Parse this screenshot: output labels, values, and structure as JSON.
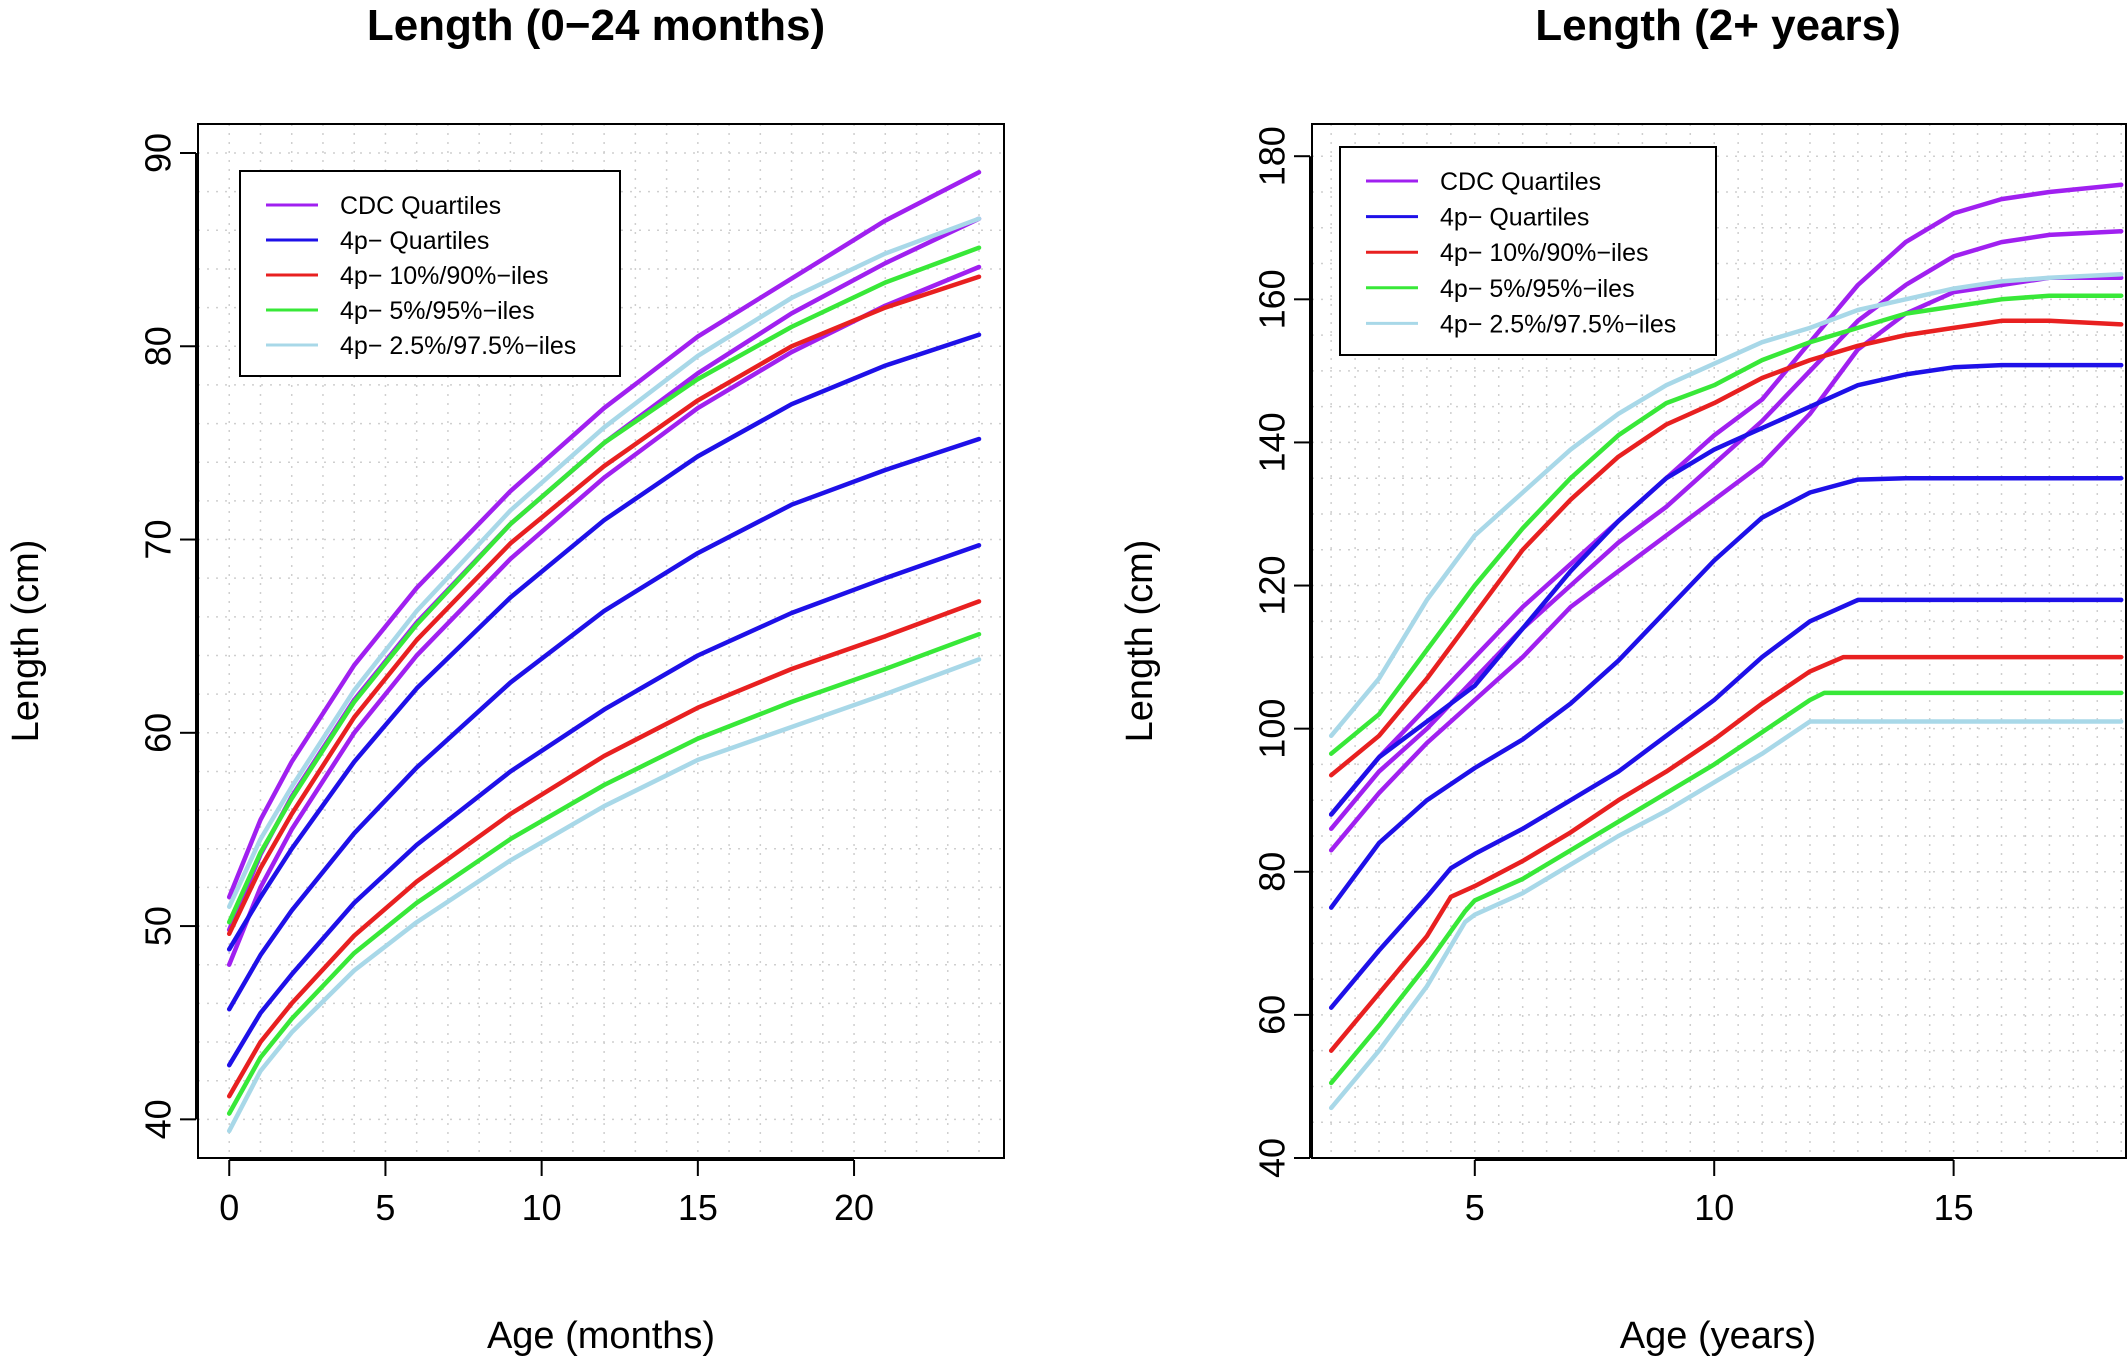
{
  "chart_data": [
    {
      "type": "line",
      "title": "Length (0−24 months)",
      "xlabel": "Age (months)",
      "ylabel": "Length (cm)",
      "xlim": [
        -1,
        24.8
      ],
      "ylim": [
        38,
        91.5
      ],
      "xticks": [
        0,
        5,
        10,
        15,
        20
      ],
      "xtick_labels": [
        "0",
        "5",
        "10",
        "15",
        "20"
      ],
      "yticks": [
        40,
        50,
        60,
        70,
        80,
        90
      ],
      "ytick_labels": [
        "40",
        "50",
        "60",
        "70",
        "80",
        "90"
      ],
      "grid": true,
      "legend_position": "top-left",
      "legend": [
        {
          "label": "CDC Quartiles",
          "color": "#a020f0"
        },
        {
          "label": "4p− Quartiles",
          "color": "#1e10e8"
        },
        {
          "label": "4p− 10%/90%−iles",
          "color": "#e82020"
        },
        {
          "label": "4p− 5%/95%−iles",
          "color": "#38e838"
        },
        {
          "label": "4p− 2.5%/97.5%−iles",
          "color": "#a8d8e8"
        }
      ],
      "series": [
        {
          "group": "CDC Quartiles",
          "color": "#a020f0",
          "x": [
            0,
            1,
            2,
            4,
            6,
            9,
            12,
            15,
            18,
            21,
            24
          ],
          "y": [
            51.5,
            55.5,
            58.5,
            63.5,
            67.5,
            72.5,
            76.8,
            80.5,
            83.5,
            86.5,
            89.0
          ]
        },
        {
          "group": "CDC Quartiles",
          "color": "#a020f0",
          "x": [
            0,
            1,
            2,
            4,
            6,
            9,
            12,
            15,
            18,
            21,
            24
          ],
          "y": [
            49.8,
            53.7,
            56.7,
            61.7,
            65.7,
            70.8,
            75.0,
            78.6,
            81.7,
            84.3,
            86.6
          ]
        },
        {
          "group": "CDC Quartiles",
          "color": "#a020f0",
          "x": [
            0,
            1,
            2,
            4,
            6,
            9,
            12,
            15,
            18,
            21,
            24
          ],
          "y": [
            48.0,
            52.0,
            55.0,
            60.0,
            64.0,
            69.0,
            73.2,
            76.8,
            79.7,
            82.1,
            84.1
          ]
        },
        {
          "group": "4p− Quartiles",
          "color": "#1e10e8",
          "x": [
            0,
            1,
            2,
            4,
            6,
            9,
            12,
            15,
            18,
            21,
            24
          ],
          "y": [
            48.8,
            51.5,
            54.0,
            58.5,
            62.3,
            67.0,
            71.0,
            74.3,
            77.0,
            79.0,
            80.6
          ]
        },
        {
          "group": "4p− Quartiles",
          "color": "#1e10e8",
          "x": [
            0,
            1,
            2,
            4,
            6,
            9,
            12,
            15,
            18,
            21,
            24
          ],
          "y": [
            45.7,
            48.5,
            50.8,
            54.8,
            58.2,
            62.6,
            66.3,
            69.3,
            71.8,
            73.6,
            75.2
          ]
        },
        {
          "group": "4p− Quartiles",
          "color": "#1e10e8",
          "x": [
            0,
            1,
            2,
            4,
            6,
            9,
            12,
            15,
            18,
            21,
            24
          ],
          "y": [
            42.8,
            45.5,
            47.5,
            51.2,
            54.2,
            58.0,
            61.2,
            64.0,
            66.2,
            68.0,
            69.7
          ]
        },
        {
          "group": "4p− 10%/90%−iles",
          "color": "#e82020",
          "x": [
            0,
            1,
            2,
            4,
            6,
            9,
            12,
            15,
            18,
            21,
            24
          ],
          "y": [
            49.6,
            53.0,
            55.8,
            60.8,
            64.8,
            69.8,
            73.8,
            77.2,
            80.0,
            82.0,
            83.6
          ]
        },
        {
          "group": "4p− 10%/90%−iles",
          "color": "#e82020",
          "x": [
            0,
            1,
            2,
            4,
            6,
            9,
            12,
            15,
            18,
            21,
            24
          ],
          "y": [
            41.2,
            44.0,
            46.0,
            49.5,
            52.3,
            55.8,
            58.8,
            61.3,
            63.3,
            65.0,
            66.8
          ]
        },
        {
          "group": "4p− 5%/95%−iles",
          "color": "#38e838",
          "x": [
            0,
            1,
            2,
            4,
            6,
            9,
            12,
            15,
            18,
            21,
            24
          ],
          "y": [
            50.2,
            53.8,
            56.6,
            61.6,
            65.6,
            70.8,
            75.0,
            78.3,
            81.0,
            83.3,
            85.1
          ]
        },
        {
          "group": "4p− 5%/95%−iles",
          "color": "#38e838",
          "x": [
            0,
            1,
            2,
            4,
            6,
            9,
            12,
            15,
            18,
            21,
            24
          ],
          "y": [
            40.3,
            43.2,
            45.2,
            48.6,
            51.2,
            54.5,
            57.3,
            59.7,
            61.6,
            63.3,
            65.1
          ]
        },
        {
          "group": "4p− 2.5%/97.5%−iles",
          "color": "#a8d8e8",
          "x": [
            0,
            1,
            2,
            4,
            6,
            9,
            12,
            15,
            18,
            21,
            24
          ],
          "y": [
            51.0,
            54.5,
            57.2,
            62.2,
            66.3,
            71.5,
            75.8,
            79.5,
            82.5,
            84.8,
            86.6
          ]
        },
        {
          "group": "4p− 2.5%/97.5%−iles",
          "color": "#a8d8e8",
          "x": [
            0,
            1,
            2,
            4,
            6,
            9,
            12,
            15,
            18,
            21,
            24
          ],
          "y": [
            39.4,
            42.5,
            44.5,
            47.7,
            50.2,
            53.4,
            56.2,
            58.6,
            60.3,
            62.0,
            63.8
          ]
        }
      ]
    },
    {
      "type": "line",
      "title": "Length (2+ years)",
      "xlabel": "Age (years)",
      "ylabel": "Length (cm)",
      "xlim": [
        1.6,
        18.6
      ],
      "ylim": [
        40,
        184.5
      ],
      "xticks": [
        5,
        10,
        15
      ],
      "xtick_labels": [
        "5",
        "10",
        "15"
      ],
      "yticks": [
        40,
        60,
        80,
        100,
        120,
        140,
        160,
        180
      ],
      "ytick_labels": [
        "40",
        "60",
        "80",
        "100",
        "120",
        "140",
        "160",
        "180"
      ],
      "grid": true,
      "legend_position": "top-left",
      "legend": [
        {
          "label": "CDC Quartiles",
          "color": "#a020f0"
        },
        {
          "label": "4p− Quartiles",
          "color": "#1e10e8"
        },
        {
          "label": "4p− 10%/90%−iles",
          "color": "#e82020"
        },
        {
          "label": "4p− 5%/95%−iles",
          "color": "#38e838"
        },
        {
          "label": "4p− 2.5%/97.5%−iles",
          "color": "#a8d8e8"
        }
      ],
      "series": [
        {
          "group": "CDC Quartiles",
          "color": "#a020f0",
          "x": [
            2,
            3,
            4,
            5,
            6,
            7,
            8,
            9,
            10,
            11,
            12,
            13,
            14,
            15,
            16,
            17,
            18.5
          ],
          "y": [
            88,
            96,
            103,
            110,
            117,
            123,
            129,
            135,
            141,
            146,
            154,
            162,
            168,
            172,
            174,
            175,
            176
          ]
        },
        {
          "group": "CDC Quartiles",
          "color": "#a020f0",
          "x": [
            2,
            3,
            4,
            5,
            6,
            7,
            8,
            9,
            10,
            11,
            12,
            13,
            14,
            15,
            16,
            17,
            18.5
          ],
          "y": [
            86,
            94,
            100,
            107,
            114,
            120,
            126,
            131,
            137,
            143,
            150,
            157,
            162,
            166,
            168,
            169,
            169.5
          ]
        },
        {
          "group": "CDC Quartiles",
          "color": "#a020f0",
          "x": [
            2,
            3,
            4,
            5,
            6,
            7,
            8,
            9,
            10,
            11,
            12,
            13,
            14,
            15,
            16,
            17,
            18.5
          ],
          "y": [
            83,
            91,
            98,
            104,
            110,
            117,
            122,
            127,
            132,
            137,
            144,
            153,
            158,
            161,
            162,
            163,
            163
          ]
        },
        {
          "group": "4p− Quartiles",
          "color": "#1e10e8",
          "x": [
            2,
            3,
            4,
            5,
            6,
            7,
            8,
            9,
            10,
            11,
            12,
            13,
            14,
            15,
            16,
            17,
            18.5
          ],
          "y": [
            88,
            96,
            101,
            106,
            114,
            122,
            129,
            135,
            139,
            142,
            145,
            148,
            149.5,
            150.5,
            150.8,
            150.8,
            150.8
          ]
        },
        {
          "group": "4p− Quartiles",
          "color": "#1e10e8",
          "x": [
            2,
            3,
            4,
            5,
            6,
            7,
            8,
            9,
            10,
            11,
            12,
            13,
            14,
            15,
            16,
            17,
            18.5
          ],
          "y": [
            75,
            84,
            90,
            94.5,
            98.5,
            103.5,
            109.5,
            116.5,
            123.5,
            129.5,
            133,
            134.8,
            135,
            135,
            135,
            135,
            135
          ]
        },
        {
          "group": "4p− Quartiles",
          "color": "#1e10e8",
          "x": [
            2,
            3,
            4,
            4.5,
            5,
            6,
            7,
            8,
            9,
            10,
            11,
            12,
            13,
            14,
            15,
            16,
            17,
            18.5
          ],
          "y": [
            61,
            69,
            76.5,
            80.5,
            82.5,
            86,
            90,
            94,
            99,
            104,
            110,
            115,
            118,
            118,
            118,
            118,
            118,
            118
          ]
        },
        {
          "group": "4p− 10%/90%−iles",
          "color": "#e82020",
          "x": [
            2,
            3,
            4,
            5,
            6,
            7,
            8,
            9,
            10,
            11,
            12,
            13,
            14,
            15,
            16,
            17,
            18.5
          ],
          "y": [
            93.5,
            99,
            107,
            116,
            125,
            132,
            138,
            142.5,
            145.5,
            149,
            151.5,
            153.5,
            155,
            156,
            157,
            157,
            156.5
          ]
        },
        {
          "group": "4p− 10%/90%−iles",
          "color": "#e82020",
          "x": [
            2,
            3,
            4,
            4.5,
            5,
            6,
            7,
            8,
            9,
            10,
            11,
            12,
            12.7,
            13,
            14,
            15,
            16,
            17,
            18.5
          ],
          "y": [
            55,
            63,
            71,
            76.5,
            78,
            81.5,
            85.5,
            90,
            94,
            98.5,
            103.5,
            108,
            110,
            110,
            110,
            110,
            110,
            110,
            110
          ]
        },
        {
          "group": "4p− 5%/95%−iles",
          "color": "#38e838",
          "x": [
            2,
            3,
            4,
            5,
            6,
            7,
            8,
            9,
            10,
            11,
            12,
            13,
            14,
            15,
            16,
            17,
            18.5
          ],
          "y": [
            96.5,
            102,
            111,
            120,
            128,
            135,
            141,
            145.5,
            148,
            151.5,
            154,
            156,
            158,
            159,
            160,
            160.5,
            160.5
          ]
        },
        {
          "group": "4p− 5%/95%−iles",
          "color": "#38e838",
          "x": [
            2,
            3,
            4,
            4.8,
            5,
            6,
            7,
            8,
            9,
            10,
            11,
            12,
            12.3,
            13,
            14,
            15,
            16,
            17,
            18.5
          ],
          "y": [
            50.5,
            58.5,
            67,
            74.5,
            76,
            79,
            83,
            87,
            91,
            95,
            99.5,
            104,
            105,
            105,
            105,
            105,
            105,
            105,
            105
          ]
        },
        {
          "group": "4p− 2.5%/97.5%−iles",
          "color": "#a8d8e8",
          "x": [
            2,
            3,
            4,
            5,
            6,
            7,
            8,
            9,
            10,
            11,
            12,
            13,
            14,
            15,
            16,
            17,
            18.5
          ],
          "y": [
            99,
            107,
            118,
            127,
            133,
            139,
            144,
            148,
            151,
            154,
            156,
            158.5,
            160,
            161.5,
            162.5,
            163,
            163.5
          ]
        },
        {
          "group": "4p− 2.5%/97.5%−iles",
          "color": "#a8d8e8",
          "x": [
            2,
            3,
            4,
            4.8,
            5,
            6,
            7,
            8,
            9,
            10,
            11,
            12,
            13,
            14,
            15,
            16,
            17,
            18.5
          ],
          "y": [
            47,
            55,
            64,
            73,
            74,
            77,
            81,
            85,
            88.5,
            92.5,
            96.5,
            101,
            101,
            101,
            101,
            101,
            101,
            101
          ]
        }
      ]
    }
  ]
}
